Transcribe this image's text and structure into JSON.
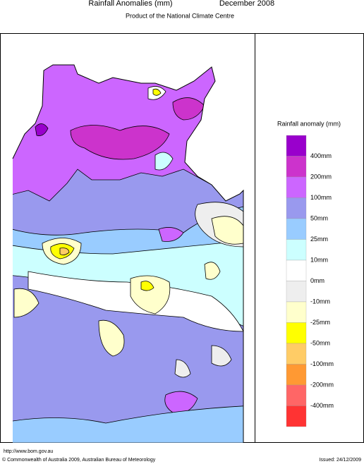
{
  "header": {
    "title": "Rainfall Anomalies (mm)",
    "period": "December 2008",
    "subtitle": "Product of the National Climate Centre"
  },
  "legend": {
    "title": "Rainfall anomaly (mm)",
    "labels": [
      "400mm",
      "200mm",
      "100mm",
      "50mm",
      "25mm",
      "10mm",
      "0mm",
      "-10mm",
      "-25mm",
      "-50mm",
      "-100mm",
      "-200mm",
      "-400mm"
    ],
    "colors": [
      "#9900cc",
      "#cc33cc",
      "#cc66ff",
      "#9999ee",
      "#99ccff",
      "#ccffff",
      "#ffffff",
      "#eeeeee",
      "#ffffcc",
      "#ffff00",
      "#ffcc66",
      "#ff9933",
      "#ff6666",
      "#ff3333"
    ]
  },
  "footer": {
    "url": "http://www.bom.gov.au",
    "copyright": "© Commonwealth of Australia 2009, Australian Bureau of Meteorology",
    "issued": "Issued: 24/12/2009"
  }
}
